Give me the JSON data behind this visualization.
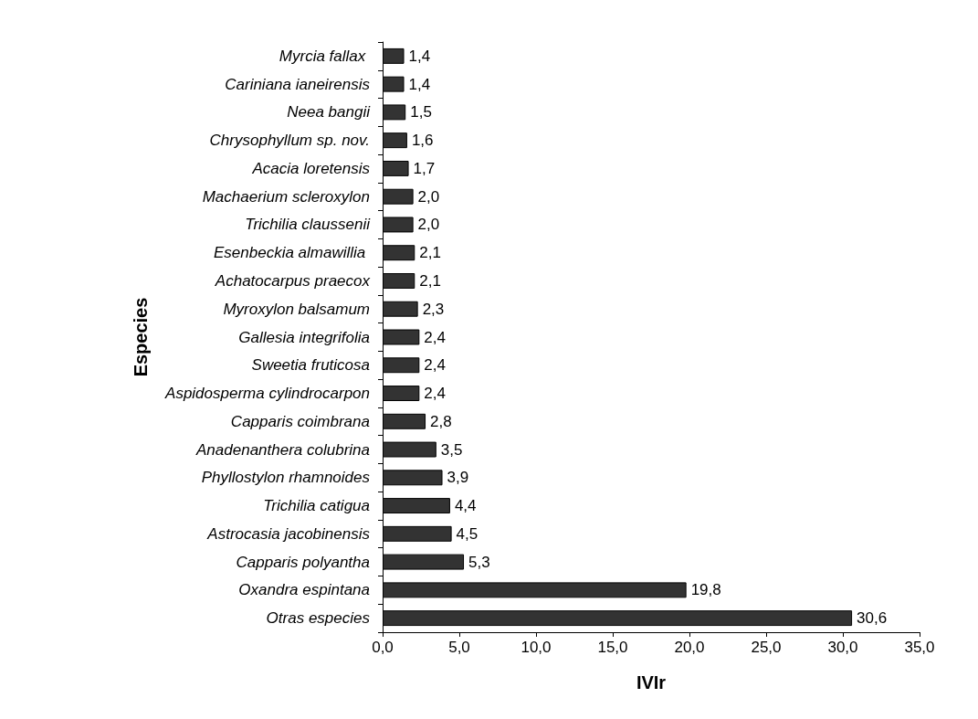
{
  "chart_data": {
    "type": "bar",
    "orientation": "horizontal",
    "xlabel": "IVIr",
    "ylabel": "Especies",
    "categories": [
      "Myrcia fallax ",
      "Cariniana ianeirensis",
      "Neea bangii",
      "Chrysophyllum sp. nov.",
      "Acacia loretensis",
      "Machaerium scleroxylon",
      "Trichilia claussenii",
      "Esenbeckia almawillia ",
      "Achatocarpus praecox",
      "Myroxylon balsamum",
      "Gallesia integrifolia",
      "Sweetia fruticosa",
      "Aspidosperma cylindrocarpon",
      "Capparis coimbrana",
      "Anadenanthera colubrina",
      "Phyllostylon rhamnoides",
      "Trichilia catigua",
      "Astrocasia jacobinensis",
      "Capparis polyantha",
      "Oxandra espintana",
      "Otras especies"
    ],
    "values": [
      1.4,
      1.4,
      1.5,
      1.6,
      1.7,
      2.0,
      2.0,
      2.1,
      2.1,
      2.3,
      2.4,
      2.4,
      2.4,
      2.8,
      3.5,
      3.9,
      4.4,
      4.5,
      5.3,
      19.8,
      30.6
    ],
    "value_labels": [
      "1,4",
      "1,4",
      "1,5",
      "1,6",
      "1,7",
      "2,0",
      "2,0",
      "2,1",
      "2,1",
      "2,3",
      "2,4",
      "2,4",
      "2,4",
      "2,8",
      "3,5",
      "3,9",
      "4,4",
      "4,5",
      "5,3",
      "19,8",
      "30,6"
    ],
    "color": "#333333",
    "xlim": [
      0,
      35
    ],
    "xticks": [
      {
        "value": 0,
        "label": "0,0"
      },
      {
        "value": 5,
        "label": "5,0"
      },
      {
        "value": 10,
        "label": "10,0"
      },
      {
        "value": 15,
        "label": "15,0"
      },
      {
        "value": 20,
        "label": "20,0"
      },
      {
        "value": 25,
        "label": "25,0"
      },
      {
        "value": 30,
        "label": "30,0"
      },
      {
        "value": 35,
        "label": "35,0"
      }
    ],
    "grid": false
  }
}
